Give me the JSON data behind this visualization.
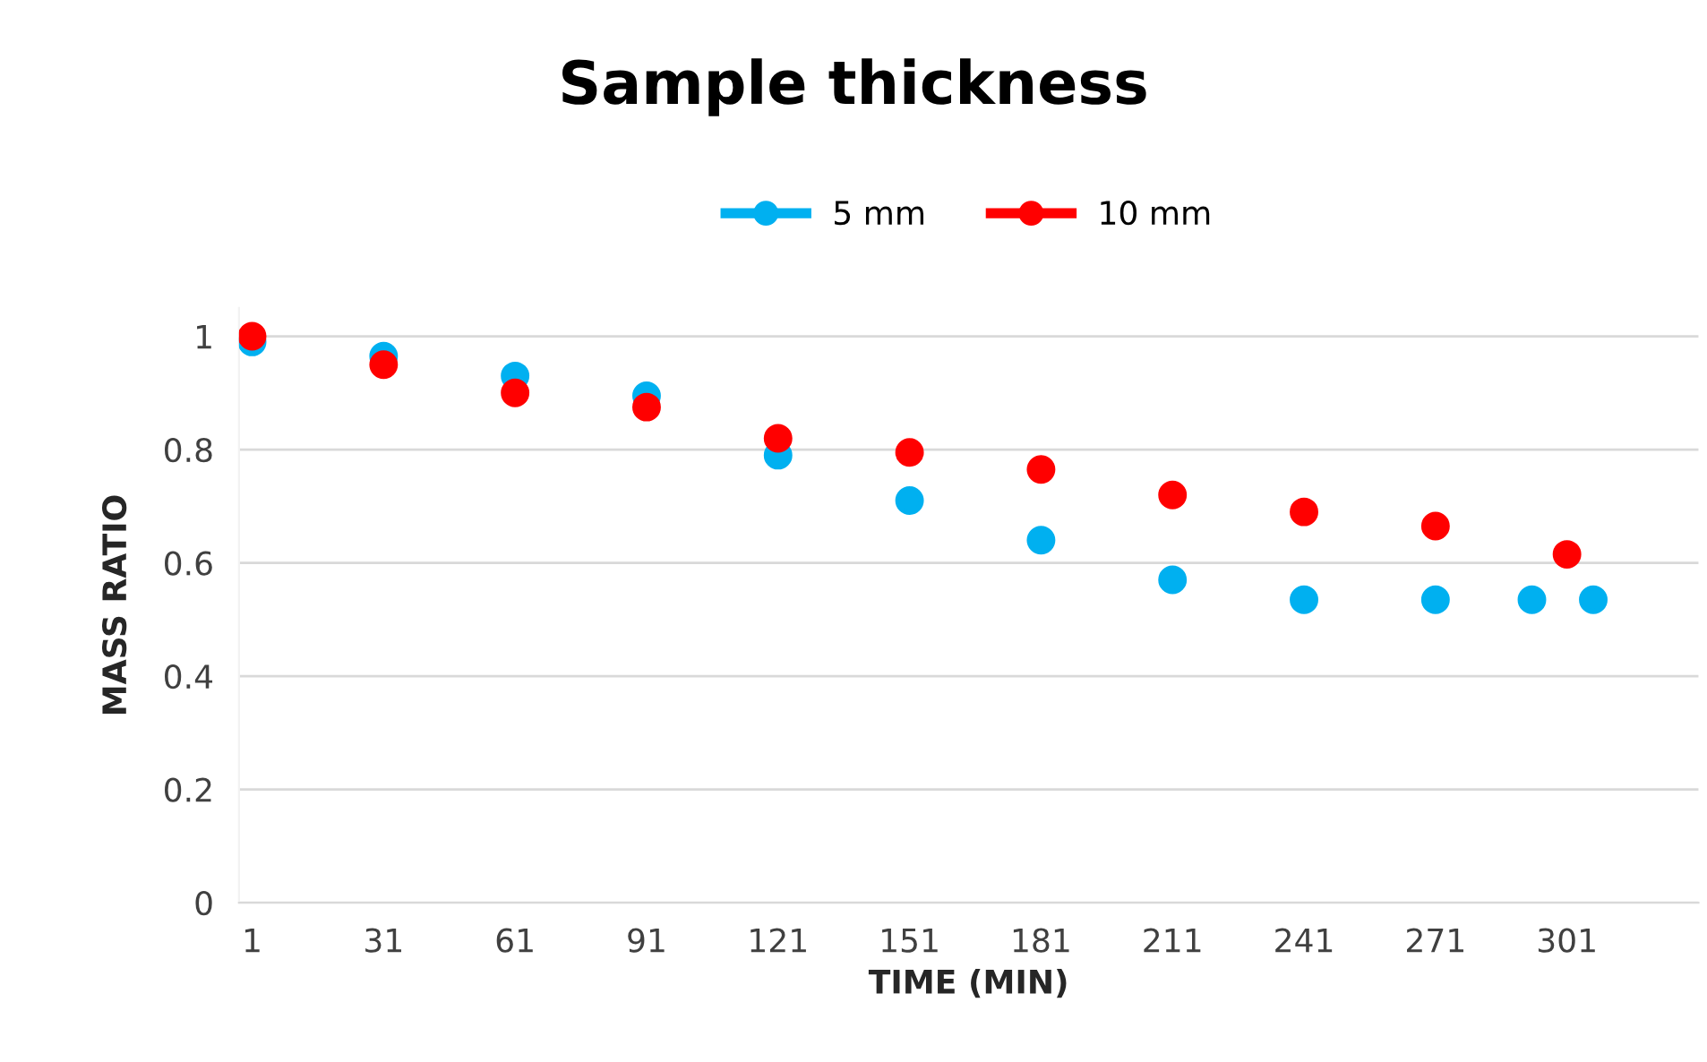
{
  "chart_data": {
    "type": "scatter",
    "title": "Sample thickness",
    "xlabel": "TIME (MIN)",
    "ylabel": "MASS RATIO",
    "series": [
      {
        "name": "5 mm",
        "color": "#00b0f0",
        "x": [
          1,
          31,
          61,
          91,
          121,
          151,
          181,
          211,
          241,
          271,
          293,
          307
        ],
        "values": [
          0.99,
          0.965,
          0.93,
          0.895,
          0.79,
          0.71,
          0.64,
          0.57,
          0.535,
          0.535,
          0.535,
          0.535
        ]
      },
      {
        "name": "10 mm",
        "color": "#ff0000",
        "x": [
          1,
          31,
          61,
          91,
          121,
          151,
          181,
          211,
          241,
          271,
          301
        ],
        "values": [
          1.0,
          0.95,
          0.9,
          0.875,
          0.82,
          0.795,
          0.765,
          0.72,
          0.69,
          0.665,
          0.615
        ]
      }
    ],
    "xlim": [
      -2,
      331
    ],
    "xticks": [
      1,
      31,
      61,
      91,
      121,
      151,
      181,
      211,
      241,
      271,
      301
    ],
    "ylim": [
      0,
      1.05
    ],
    "yticks": [
      0,
      0.2,
      0.4,
      0.6,
      0.8,
      1
    ],
    "grid": "y",
    "legend": "top",
    "marker": "circle"
  }
}
